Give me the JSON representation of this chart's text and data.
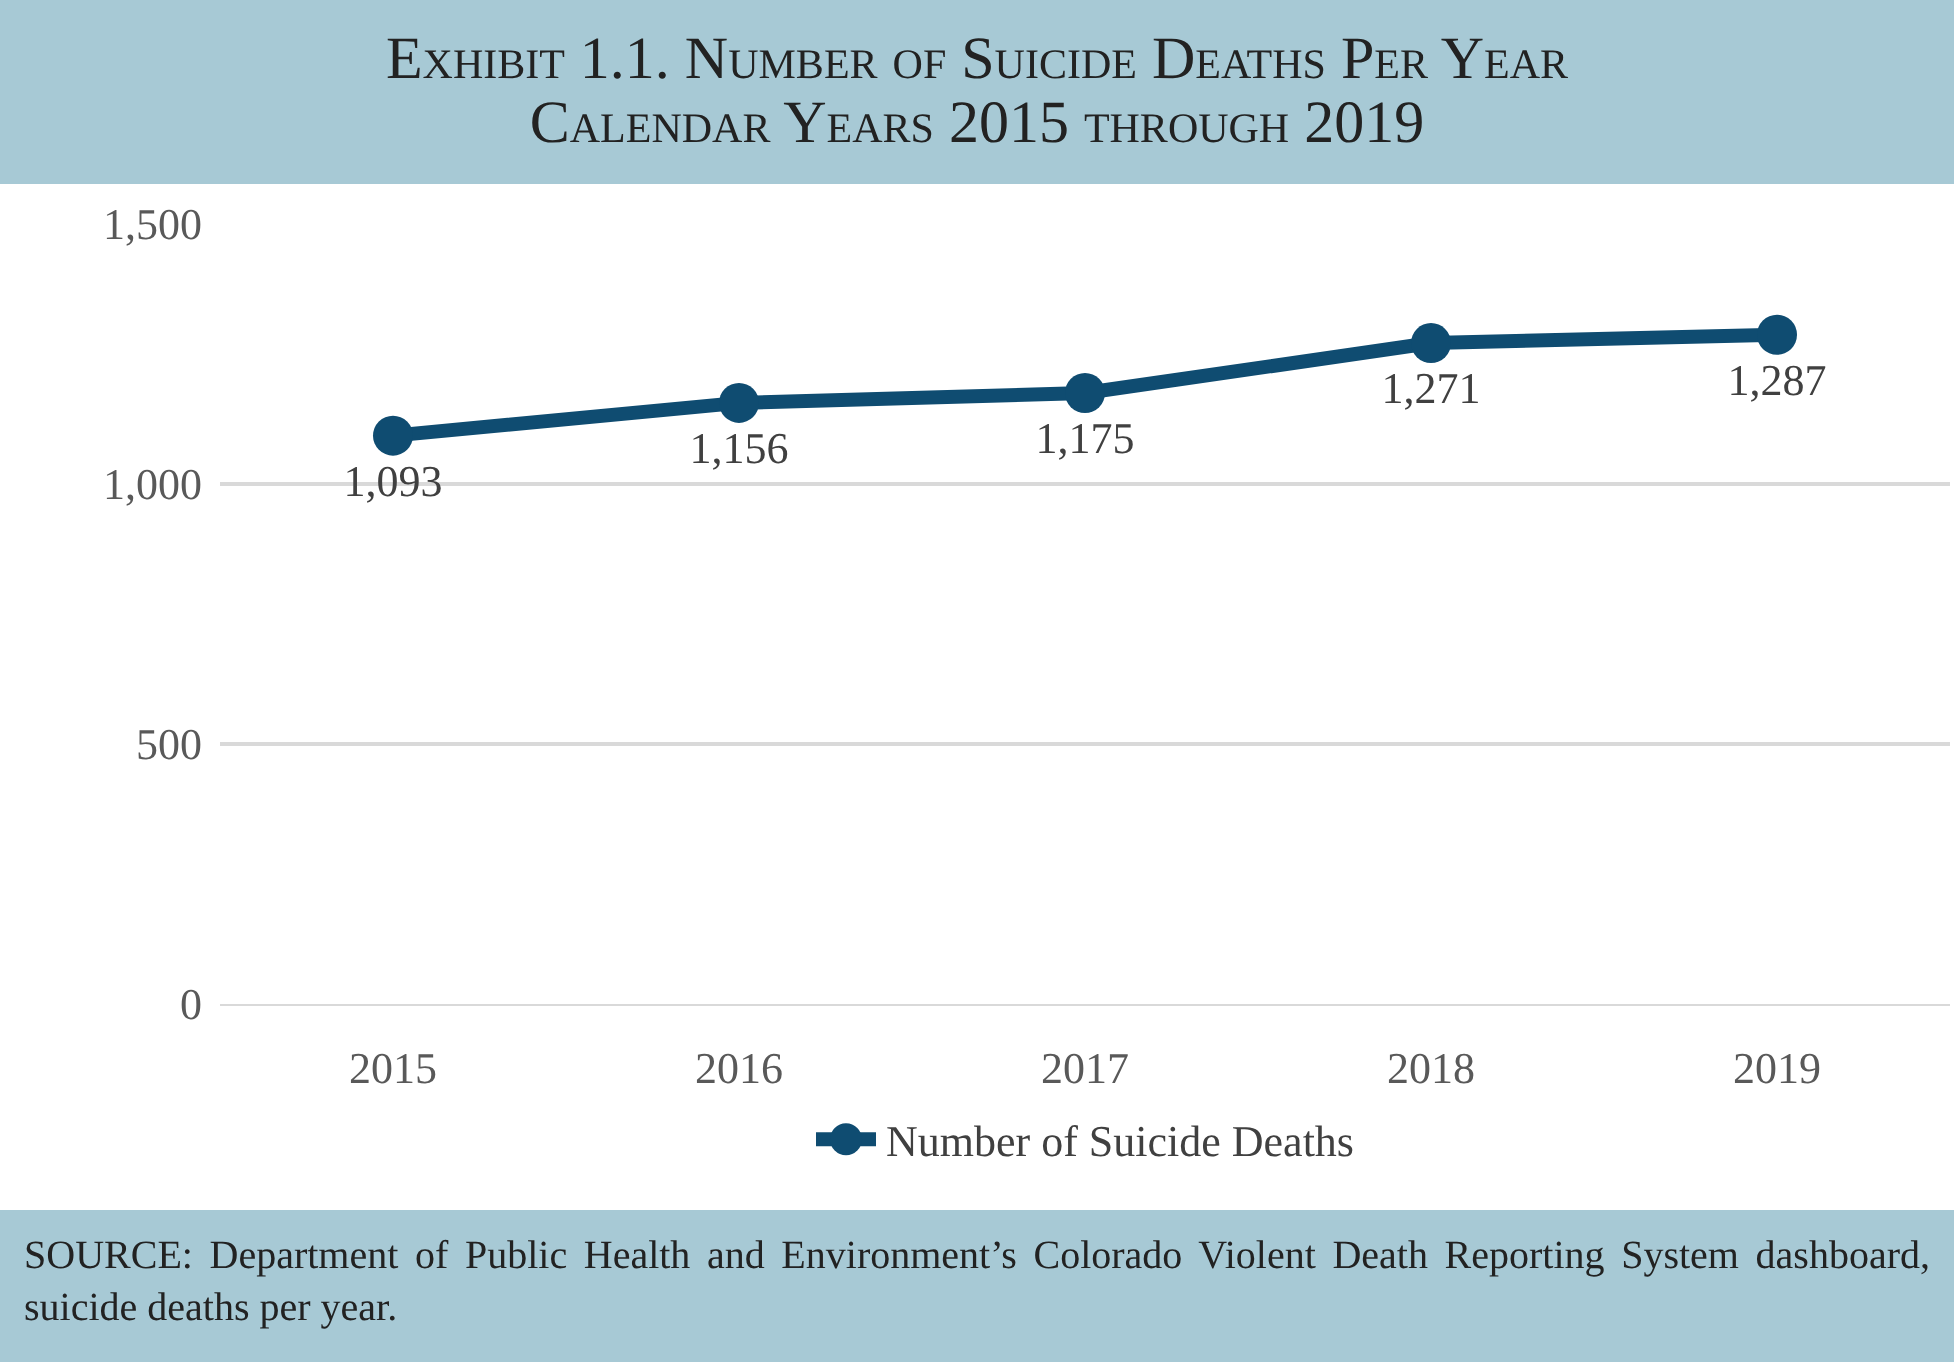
{
  "chart_data": {
    "type": "line",
    "title": "Exhibit 1.1. Number of Suicide Deaths Per Year",
    "subtitle": "Calendar Years 2015 through 2019",
    "categories": [
      "2015",
      "2016",
      "2017",
      "2018",
      "2019"
    ],
    "series": [
      {
        "name": "Number of Suicide Deaths",
        "color": "#0f4c71",
        "values": [
          1093,
          1156,
          1175,
          1271,
          1287
        ],
        "value_labels": [
          "1,093",
          "1,156",
          "1,175",
          "1,271",
          "1,287"
        ]
      }
    ],
    "ylim": [
      0,
      1500
    ],
    "yticks": [
      0,
      500,
      {
        "value": 1000,
        "label": "1,000"
      },
      {
        "value": 1500,
        "label": "1,500"
      }
    ],
    "grid": "y",
    "legend": "bottom",
    "marker": "circle",
    "line_style": "solid",
    "annotations": [
      "SOURCE: Department of Public Health and Environment’s Colorado Violent Death Reporting System dashboard, suicide deaths per year."
    ]
  }
}
